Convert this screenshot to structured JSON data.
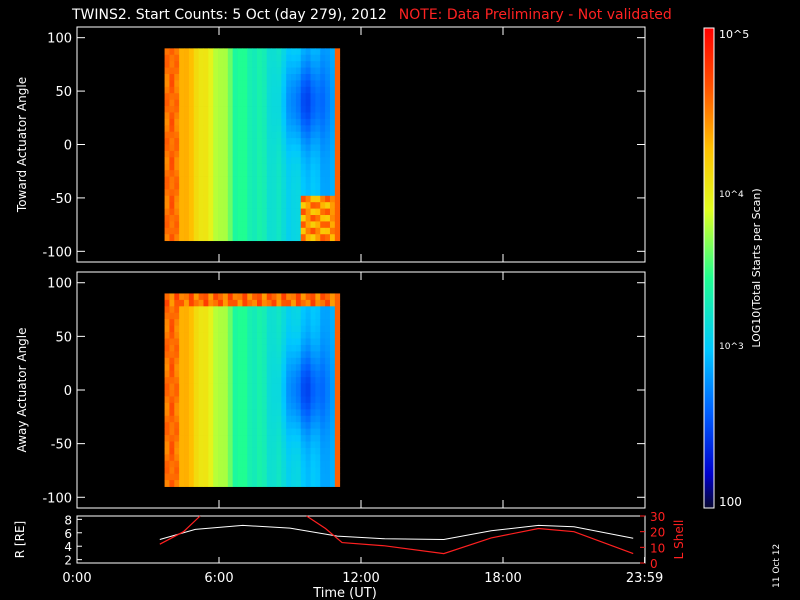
{
  "header": {
    "title": "TWINS2. Start Counts:  5 Oct (day 279), 2012",
    "note": "NOTE: Data Preliminary - Not validated"
  },
  "footer": {
    "date_stamp": "11 Oct 12"
  },
  "colorbar": {
    "label": "LOG10(Total Starts per Scan)",
    "ticks": [
      "100",
      "10^3",
      "10^4",
      "10^5"
    ]
  },
  "colors": {
    "note": "#ff2222",
    "lshell": "#ff2020",
    "r_line": "#ffffff",
    "background": "#000000"
  },
  "chart_data": [
    {
      "type": "heatmap",
      "id": "toward",
      "ylabel": "Toward Actuator Angle",
      "ylim": [
        -110,
        110
      ],
      "yticks": [
        100,
        50,
        0,
        -50,
        -100
      ],
      "xlim": [
        0,
        24
      ],
      "time_range_hours": [
        3.7,
        11.1
      ],
      "angle_range": [
        -90,
        90
      ],
      "zscale": "log",
      "zrange": [
        100,
        100000
      ]
    },
    {
      "type": "heatmap",
      "id": "away",
      "ylabel": "Away Actuator Angle",
      "ylim": [
        -110,
        110
      ],
      "yticks": [
        100,
        50,
        0,
        -50,
        -100
      ],
      "xlim": [
        0,
        24
      ],
      "time_range_hours": [
        3.7,
        11.1
      ],
      "angle_range": [
        -90,
        90
      ],
      "zscale": "log",
      "zrange": [
        100,
        100000
      ]
    },
    {
      "type": "line",
      "id": "orbit",
      "xlabel": "Time (UT)",
      "xlim": [
        0,
        24
      ],
      "xticks": [
        "0:00",
        "6:00",
        "12:00",
        "18:00",
        "23:59"
      ],
      "ylabel_left": "R [RE]",
      "ylim_left": [
        1.5,
        8.5
      ],
      "yticks_left": [
        2,
        4,
        6,
        8
      ],
      "ylabel_right": "L Shell",
      "ylim_right": [
        0,
        30
      ],
      "yticks_right": [
        0,
        10,
        20,
        30
      ],
      "series": [
        {
          "name": "R [RE]",
          "axis": "left",
          "x": [
            3.5,
            5,
            7,
            9,
            11,
            13,
            15.5,
            17.5,
            19.5,
            21,
            23.5
          ],
          "y": [
            5.0,
            6.5,
            7.1,
            6.7,
            5.5,
            5.1,
            5.0,
            6.3,
            7.1,
            6.9,
            5.2
          ]
        },
        {
          "name": "L Shell",
          "axis": "right",
          "segments": [
            {
              "x": [
                3.5,
                4.5,
                5.2
              ],
              "y": [
                12,
                20,
                30
              ]
            },
            {
              "x": [
                9.7,
                10.5,
                11.2,
                13,
                15.5,
                17.5,
                19.5,
                21,
                23.5
              ],
              "y": [
                30,
                22,
                13,
                11,
                6,
                16,
                22,
                20,
                6
              ]
            }
          ]
        }
      ]
    }
  ]
}
